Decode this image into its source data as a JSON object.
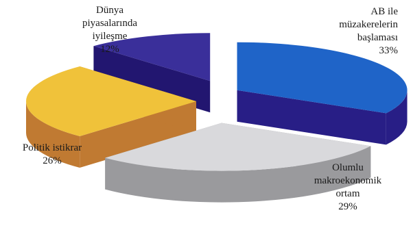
{
  "chart_data": {
    "type": "pie",
    "style": "3d-exploded",
    "slices": [
      {
        "label": "AB ile müzakerelerin başlaması",
        "lines": [
          "AB ile",
          "müzakerelerin",
          "başlaması"
        ],
        "value": 33,
        "value_label": "33%",
        "top_color": "#1f64c8",
        "side_color": "#281e86"
      },
      {
        "label": "Olumlu makroekonomik ortam",
        "lines": [
          "Olumlu",
          "makroekonomik",
          "ortam"
        ],
        "value": 29,
        "value_label": "29%",
        "top_color": "#d9d9dc",
        "side_color": "#9a9a9d"
      },
      {
        "label": "Politik istikrar",
        "lines": [
          "Politik istikrar"
        ],
        "value": 26,
        "value_label": "26%",
        "top_color": "#f0c23a",
        "side_color": "#c07a32"
      },
      {
        "label": "Dünya piyasalarında iyileşme",
        "lines": [
          "Dünya",
          "piyasalarında",
          "iyileşme"
        ],
        "value": 12,
        "value_label": "12%",
        "top_color": "#3a2f9a",
        "side_color": "#221670"
      }
    ],
    "legend": "none"
  }
}
